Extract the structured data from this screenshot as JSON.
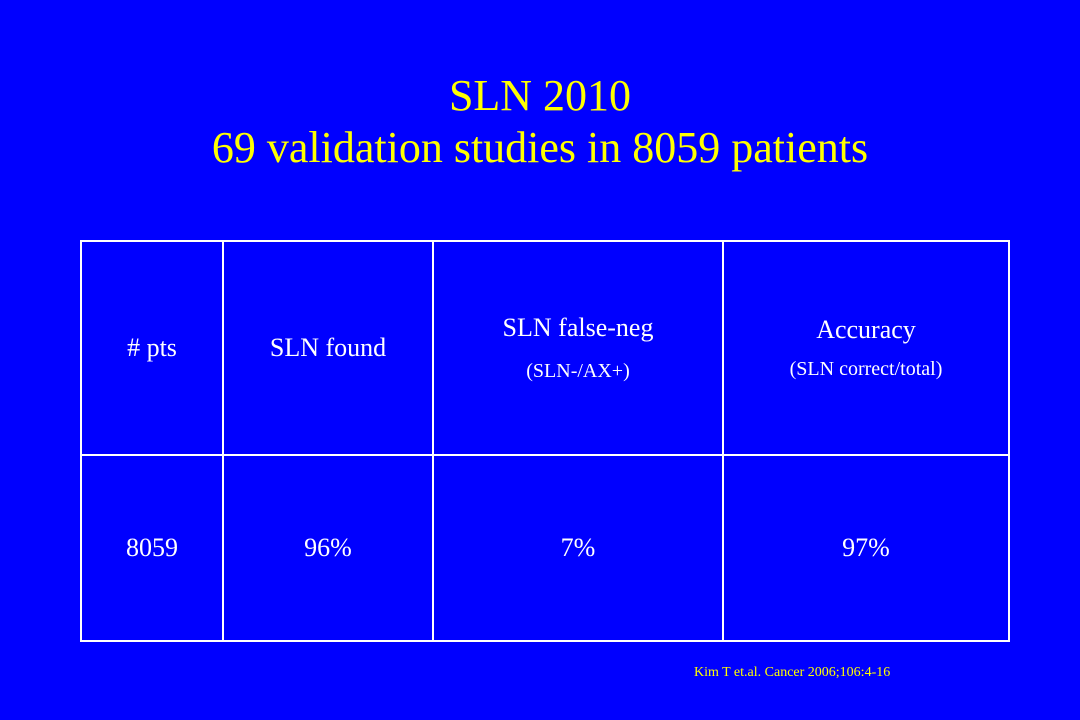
{
  "slide": {
    "title_line1": "SLN 2010",
    "title_line2": "69 validation studies in 8059 patients",
    "table": {
      "headers": [
        {
          "main": "# pts",
          "sub": ""
        },
        {
          "main": "SLN found",
          "sub": ""
        },
        {
          "main": "SLN false-neg",
          "sub": "(SLN-/AX+)"
        },
        {
          "main": "Accuracy",
          "sub": "(SLN correct/total)"
        }
      ],
      "values": [
        "8059",
        "96%",
        "7%",
        "97%"
      ]
    },
    "citation": "Kim T et.al. Cancer 2006;106:4-16"
  },
  "colors": {
    "background": "#0000ff",
    "title": "#ffff00",
    "table_text": "#ffffff",
    "citation": "#ffff00"
  }
}
